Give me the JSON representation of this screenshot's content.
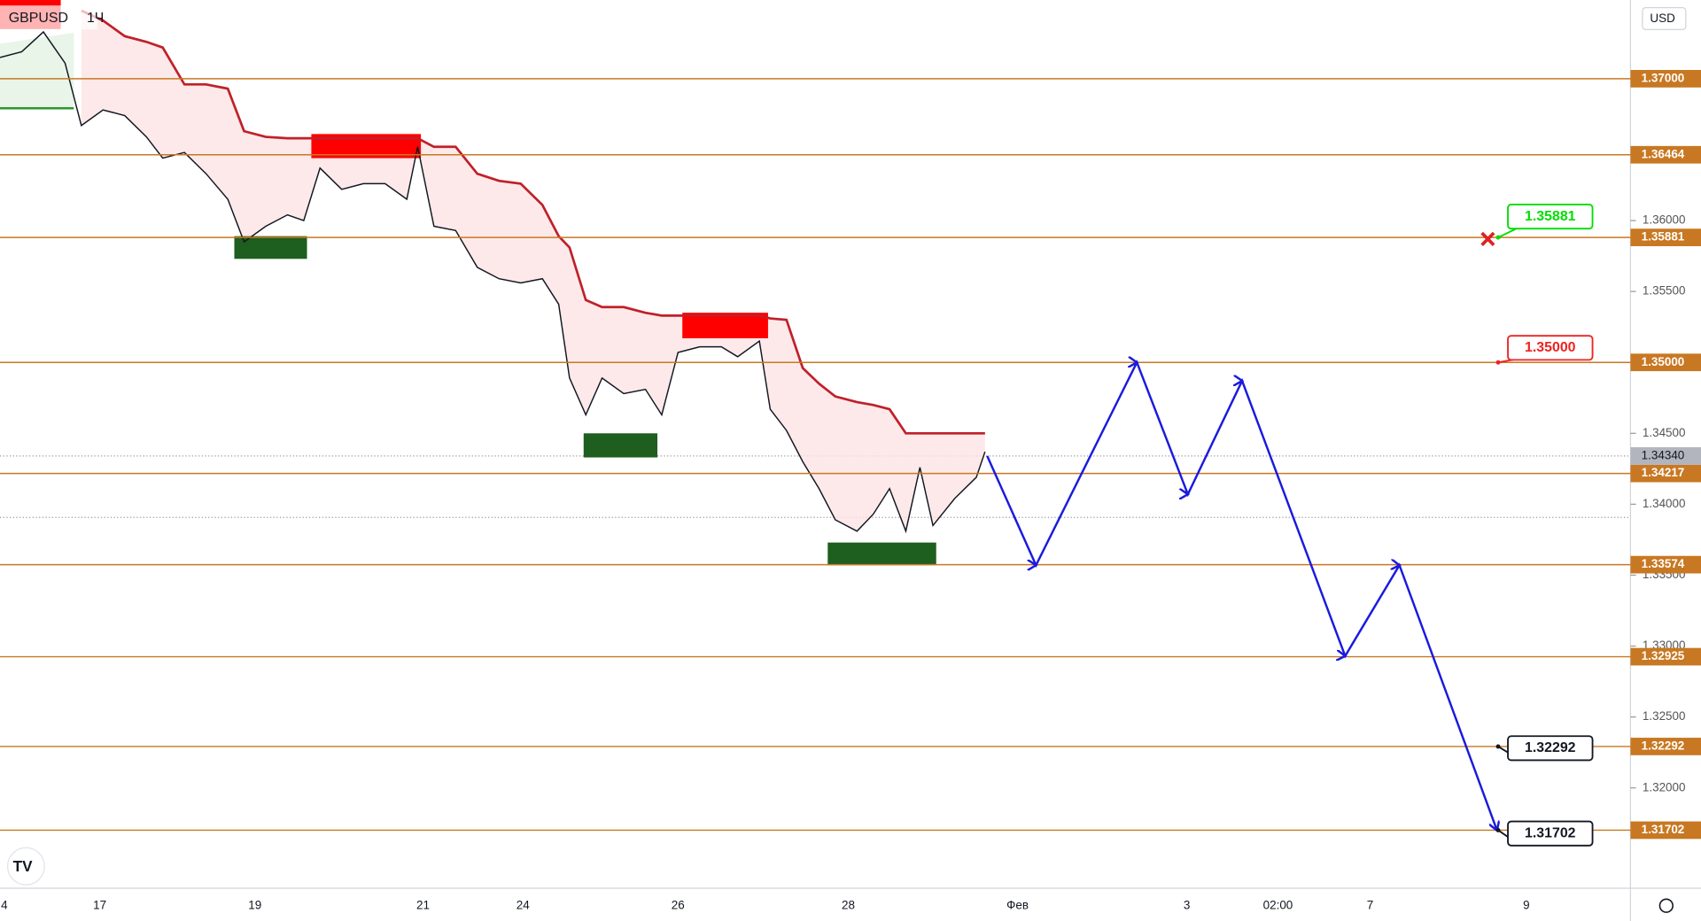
{
  "symbol": "GBPUSD",
  "interval": "1Ч",
  "currency": "USD",
  "price_axis": {
    "ylim": [
      1.37555,
      1.31293
    ],
    "yticks": [
      {
        "value": 1.36,
        "label": "1.36000"
      },
      {
        "value": 1.355,
        "label": "1.35500"
      },
      {
        "value": 1.345,
        "label": "1.34500"
      },
      {
        "value": 1.34,
        "label": "1.34000"
      },
      {
        "value": 1.335,
        "label": "1.33500"
      },
      {
        "value": 1.33,
        "label": "1.33000"
      },
      {
        "value": 1.325,
        "label": "1.32500"
      },
      {
        "value": 1.32,
        "label": "1.32000"
      }
    ]
  },
  "levels": [
    {
      "value": 1.37,
      "label": "1.37000"
    },
    {
      "value": 1.36464,
      "label": "1.36464"
    },
    {
      "value": 1.35881,
      "label": "1.35881"
    },
    {
      "value": 1.35,
      "label": "1.35000"
    },
    {
      "value": 1.34217,
      "label": "1.34217"
    },
    {
      "value": 1.33574,
      "label": "1.33574"
    },
    {
      "value": 1.32925,
      "label": "1.32925"
    },
    {
      "value": 1.32292,
      "label": "1.32292"
    },
    {
      "value": 1.31702,
      "label": "1.31702"
    }
  ],
  "level_color": "#c87822",
  "current_price": {
    "value": 1.3434,
    "label": "1.34340"
  },
  "time_axis": [
    "4",
    "17",
    "19",
    "21",
    "24",
    "26",
    "28",
    "Фев",
    "3",
    "02:00",
    "7",
    "9"
  ],
  "price": {
    "color": "#131722",
    "values": [
      1.3715,
      1.3719,
      1.3733,
      1.3711,
      1.3667,
      1.3678,
      1.3674,
      1.3659,
      1.3644,
      1.3648,
      1.3633,
      1.3615,
      1.3585,
      1.3596,
      1.3604,
      1.36,
      1.3637,
      1.3622,
      1.3626,
      1.3626,
      1.3615,
      1.3652,
      1.3596,
      1.3593,
      1.3567,
      1.3559,
      1.3556,
      1.3559,
      1.3541,
      1.3489,
      1.3463,
      1.3489,
      1.3478,
      1.3481,
      1.3463,
      1.3507,
      1.3511,
      1.3511,
      1.3504,
      1.3515,
      1.3467,
      1.3452,
      1.343,
      1.3411,
      1.3389,
      1.3381,
      1.3393,
      1.3411,
      1.3381,
      1.3426,
      1.3385,
      1.3404,
      1.3419,
      1.3437
    ]
  },
  "trailing_stop": {
    "color": "#c0202a",
    "values": [
      null,
      null,
      null,
      null,
      1.3748,
      1.3741,
      1.373,
      1.3726,
      1.3722,
      1.3696,
      1.3696,
      1.3693,
      1.3663,
      1.3659,
      1.3658,
      1.3658,
      1.3658,
      1.3658,
      1.3658,
      1.3658,
      1.3658,
      1.3658,
      1.3652,
      1.3652,
      1.3633,
      1.3628,
      1.3626,
      1.3611,
      1.3589,
      1.3581,
      1.3544,
      1.3539,
      1.3539,
      1.3535,
      1.3533,
      1.3533,
      1.3533,
      1.3533,
      1.3533,
      1.3533,
      1.3531,
      1.353,
      1.3496,
      1.3485,
      1.3476,
      1.3472,
      1.347,
      1.3467,
      1.345,
      1.345,
      1.345,
      1.345,
      1.345,
      1.345
    ]
  },
  "zones": [
    {
      "top": 1.3756,
      "bottom": 1.3735,
      "color": "#ff0000"
    },
    {
      "top": 1.3661,
      "bottom": 1.3644,
      "color": "#ff0000"
    },
    {
      "top": 1.3535,
      "bottom": 1.3517,
      "color": "#ff0000"
    },
    {
      "top": 1.3589,
      "bottom": 1.3573,
      "color": "#1e5e1e"
    },
    {
      "top": 1.345,
      "bottom": 1.3433,
      "color": "#1e5e1e"
    },
    {
      "top": 1.3373,
      "bottom": 1.3357,
      "color": "#1e5e1e"
    }
  ],
  "forecast": {
    "color": "#1a1adf",
    "values": [
      1.3434,
      1.3357,
      1.35,
      1.3407,
      1.3487,
      1.3293,
      1.3357,
      1.317
    ]
  },
  "callouts": [
    {
      "value": 1.35881,
      "label": "1.35881",
      "color": "#00dd00"
    },
    {
      "value": 1.35,
      "label": "1.35000",
      "color": "#ee2222"
    },
    {
      "value": 1.32292,
      "label": "1.32292",
      "color": "#131722"
    },
    {
      "value": 1.31702,
      "label": "1.31702",
      "color": "#131722"
    }
  ]
}
